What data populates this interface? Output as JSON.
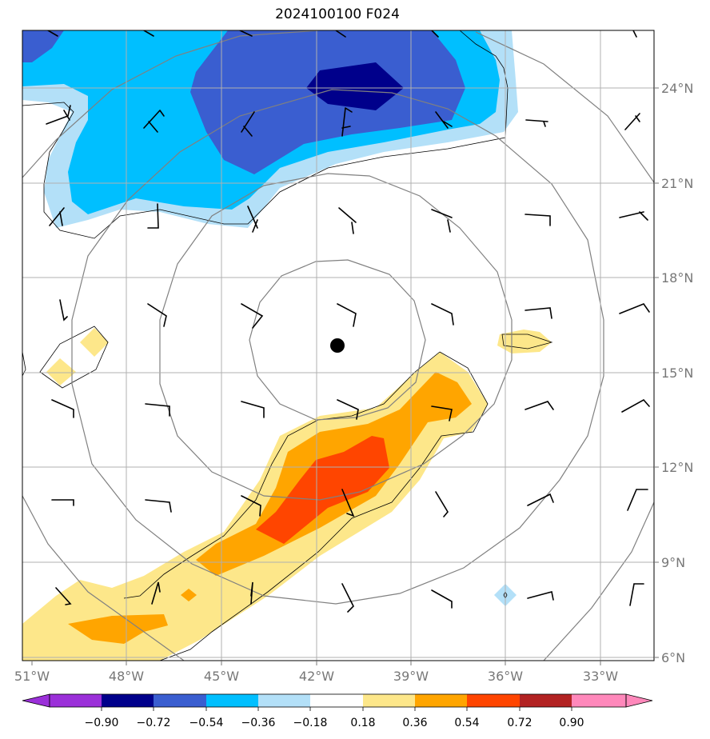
{
  "map": {
    "title": "2024100100 F024",
    "lon_labels": [
      "51°W",
      "48°W",
      "45°W",
      "42°W",
      "39°W",
      "36°W",
      "33°W"
    ],
    "lat_labels": [
      "24°N",
      "21°N",
      "18°N",
      "15°N",
      "12°N",
      "9°N",
      "6°N"
    ],
    "center_marker": {
      "lon": -41.3,
      "lat": 15.8,
      "color": "#000000"
    },
    "colors": {
      "light_blue": "#b3e0f8",
      "cyan": "#00bfff",
      "blue": "#3a5ed0",
      "navy": "#00008b",
      "pale_yellow": "#fde78a",
      "orange": "#ffa500",
      "red_orange": "#ff4500"
    }
  },
  "colorbar": {
    "ticks": [
      "−0.90",
      "−0.72",
      "−0.54",
      "−0.36",
      "−0.18",
      "0.18",
      "0.36",
      "0.54",
      "0.72",
      "0.90"
    ],
    "colors": [
      "#9b30d9",
      "#00008b",
      "#3a5ed0",
      "#00bfff",
      "#b3e0f8",
      "#ffffff",
      "#fde78a",
      "#ffa500",
      "#ff4500",
      "#b22222",
      "#ff88bb",
      "#ff88bb"
    ]
  }
}
